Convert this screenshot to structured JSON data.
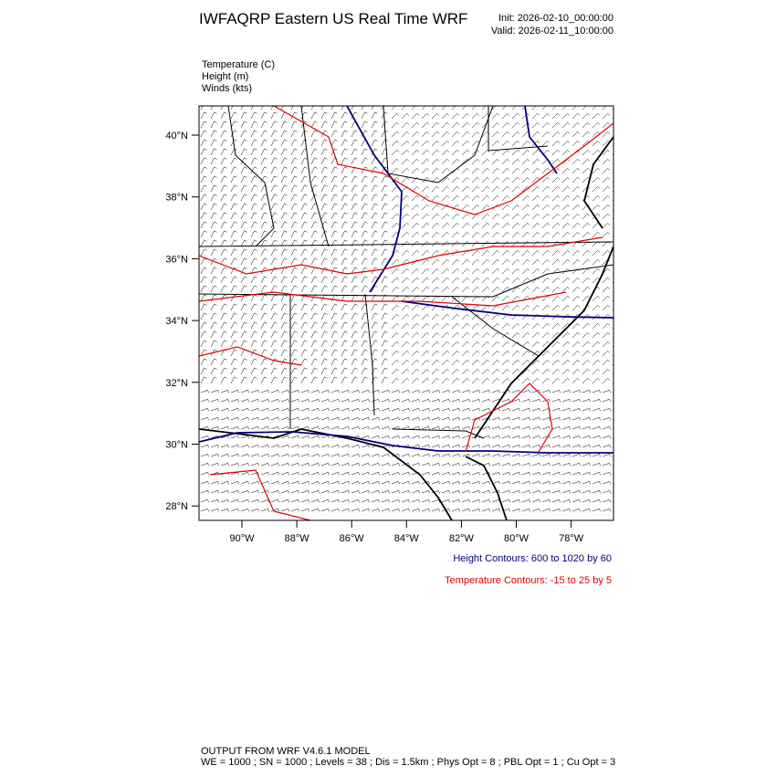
{
  "header": {
    "title": "IWFAQRP Eastern US Real Time WRF",
    "init": "Init: 2026-02-10_00:00:00",
    "valid": "Valid: 2026-02-11_10:00:00"
  },
  "fields": [
    "Temperature   (C)",
    "Height   (m)",
    "Winds   (kts)"
  ],
  "map": {
    "lat_labels": [
      "40°N",
      "38°N",
      "36°N",
      "34°N",
      "32°N",
      "30°N",
      "28°N"
    ],
    "lon_labels": [
      "90°W",
      "88°W",
      "86°W",
      "84°W",
      "82°W",
      "80°W",
      "78°W"
    ]
  },
  "contours": {
    "height": "Height Contours: 600 to 1020 by 60",
    "temperature": "Temperature Contours: -15 to 25 by 5"
  },
  "footer": {
    "line1": "OUTPUT FROM WRF V4.6.1 MODEL",
    "line2": "WE = 1000 ; SN = 1000 ; Levels = 38 ; Dis = 1.5km ; Phys Opt = 8 ; PBL Opt = 1 ; Cu Opt = 3"
  }
}
